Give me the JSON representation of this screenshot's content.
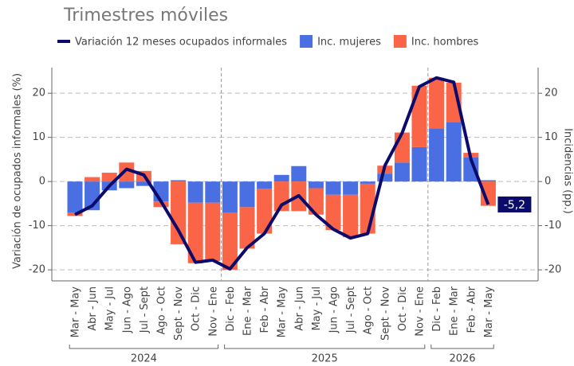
{
  "chart_data": {
    "type": "bar_line",
    "subtitle": "Trimestres móviles",
    "ylabel": "Variación de ocupados informales (%)",
    "y2label": "Incidencias (pp.)",
    "groups": [
      {
        "label": "2024",
        "categories": [
          "Mar - May",
          "Abr - Jun",
          "May - Jul",
          "Jun - Ago",
          "Jul - Sept",
          "Ago - Oct",
          "Sept - Nov",
          "Oct - Dic",
          "Nov - Ene"
        ]
      },
      {
        "label": "2025",
        "categories": [
          "Dic - Feb",
          "Ene - Mar",
          "Feb - Abr",
          "Mar - May",
          "Abr - Jun",
          "May - Jul",
          "Jun - Ago",
          "Jul - Sept",
          "Ago - Oct",
          "Sept - Nov",
          "Oct - Dic",
          "Nov - Ene"
        ]
      },
      {
        "label": "2026",
        "categories": [
          "Dic - Feb",
          "Ene - Mar",
          "Feb - Abr",
          "Mar - May"
        ]
      }
    ],
    "series": [
      {
        "name": "Variación 12 meses ocupados informales",
        "kind": "line",
        "color": "#0b0b6b",
        "values": [
          -7.5,
          -5.5,
          -1,
          2.8,
          1.5,
          -4.5,
          -11,
          -18.3,
          -17.8,
          -19.8,
          -15,
          -11.8,
          -5.3,
          -3.2,
          -7.5,
          -10.8,
          -12.8,
          -11.8,
          3.6,
          11,
          21.5,
          23.5,
          22.5,
          5,
          -5.2
        ],
        "value_labels": [
          null,
          null,
          null,
          null,
          null,
          null,
          null,
          null,
          null,
          null,
          null,
          null,
          null,
          null,
          null,
          null,
          null,
          null,
          null,
          null,
          null,
          null,
          null,
          null,
          "-5,2"
        ]
      },
      {
        "name": "Inc. mujeres",
        "kind": "bar",
        "axis": "y2",
        "color": "#4a6fe3",
        "values": [
          -7,
          -6.5,
          -2,
          -1.5,
          -1,
          -4.5,
          0.3,
          -4.8,
          -4.8,
          -7,
          -5.8,
          -1.6,
          1.5,
          3.5,
          -1.5,
          -3,
          -3,
          -0.5,
          1.8,
          4.3,
          7.8,
          12,
          13.5,
          5.5,
          0.3
        ]
      },
      {
        "name": "Inc. hombres",
        "kind": "bar",
        "axis": "y2",
        "color": "#fb6547",
        "values": [
          -0.8,
          1,
          2,
          4.3,
          2.4,
          -1.3,
          -14.2,
          -13.7,
          -13.2,
          -13,
          -9.4,
          -10.2,
          -6.7,
          -6.7,
          -6,
          -8,
          -9.6,
          -11.3,
          1.8,
          6.8,
          13.9,
          11.5,
          8.9,
          1,
          -5.5
        ]
      }
    ],
    "ylim": [
      -22.5,
      25.8
    ],
    "yticks": [
      -20,
      -10,
      0,
      10,
      20
    ],
    "y2lim": [
      -22.5,
      25.8
    ],
    "y2ticks": [
      -20,
      -10,
      0,
      10,
      20
    ],
    "grid": true
  }
}
